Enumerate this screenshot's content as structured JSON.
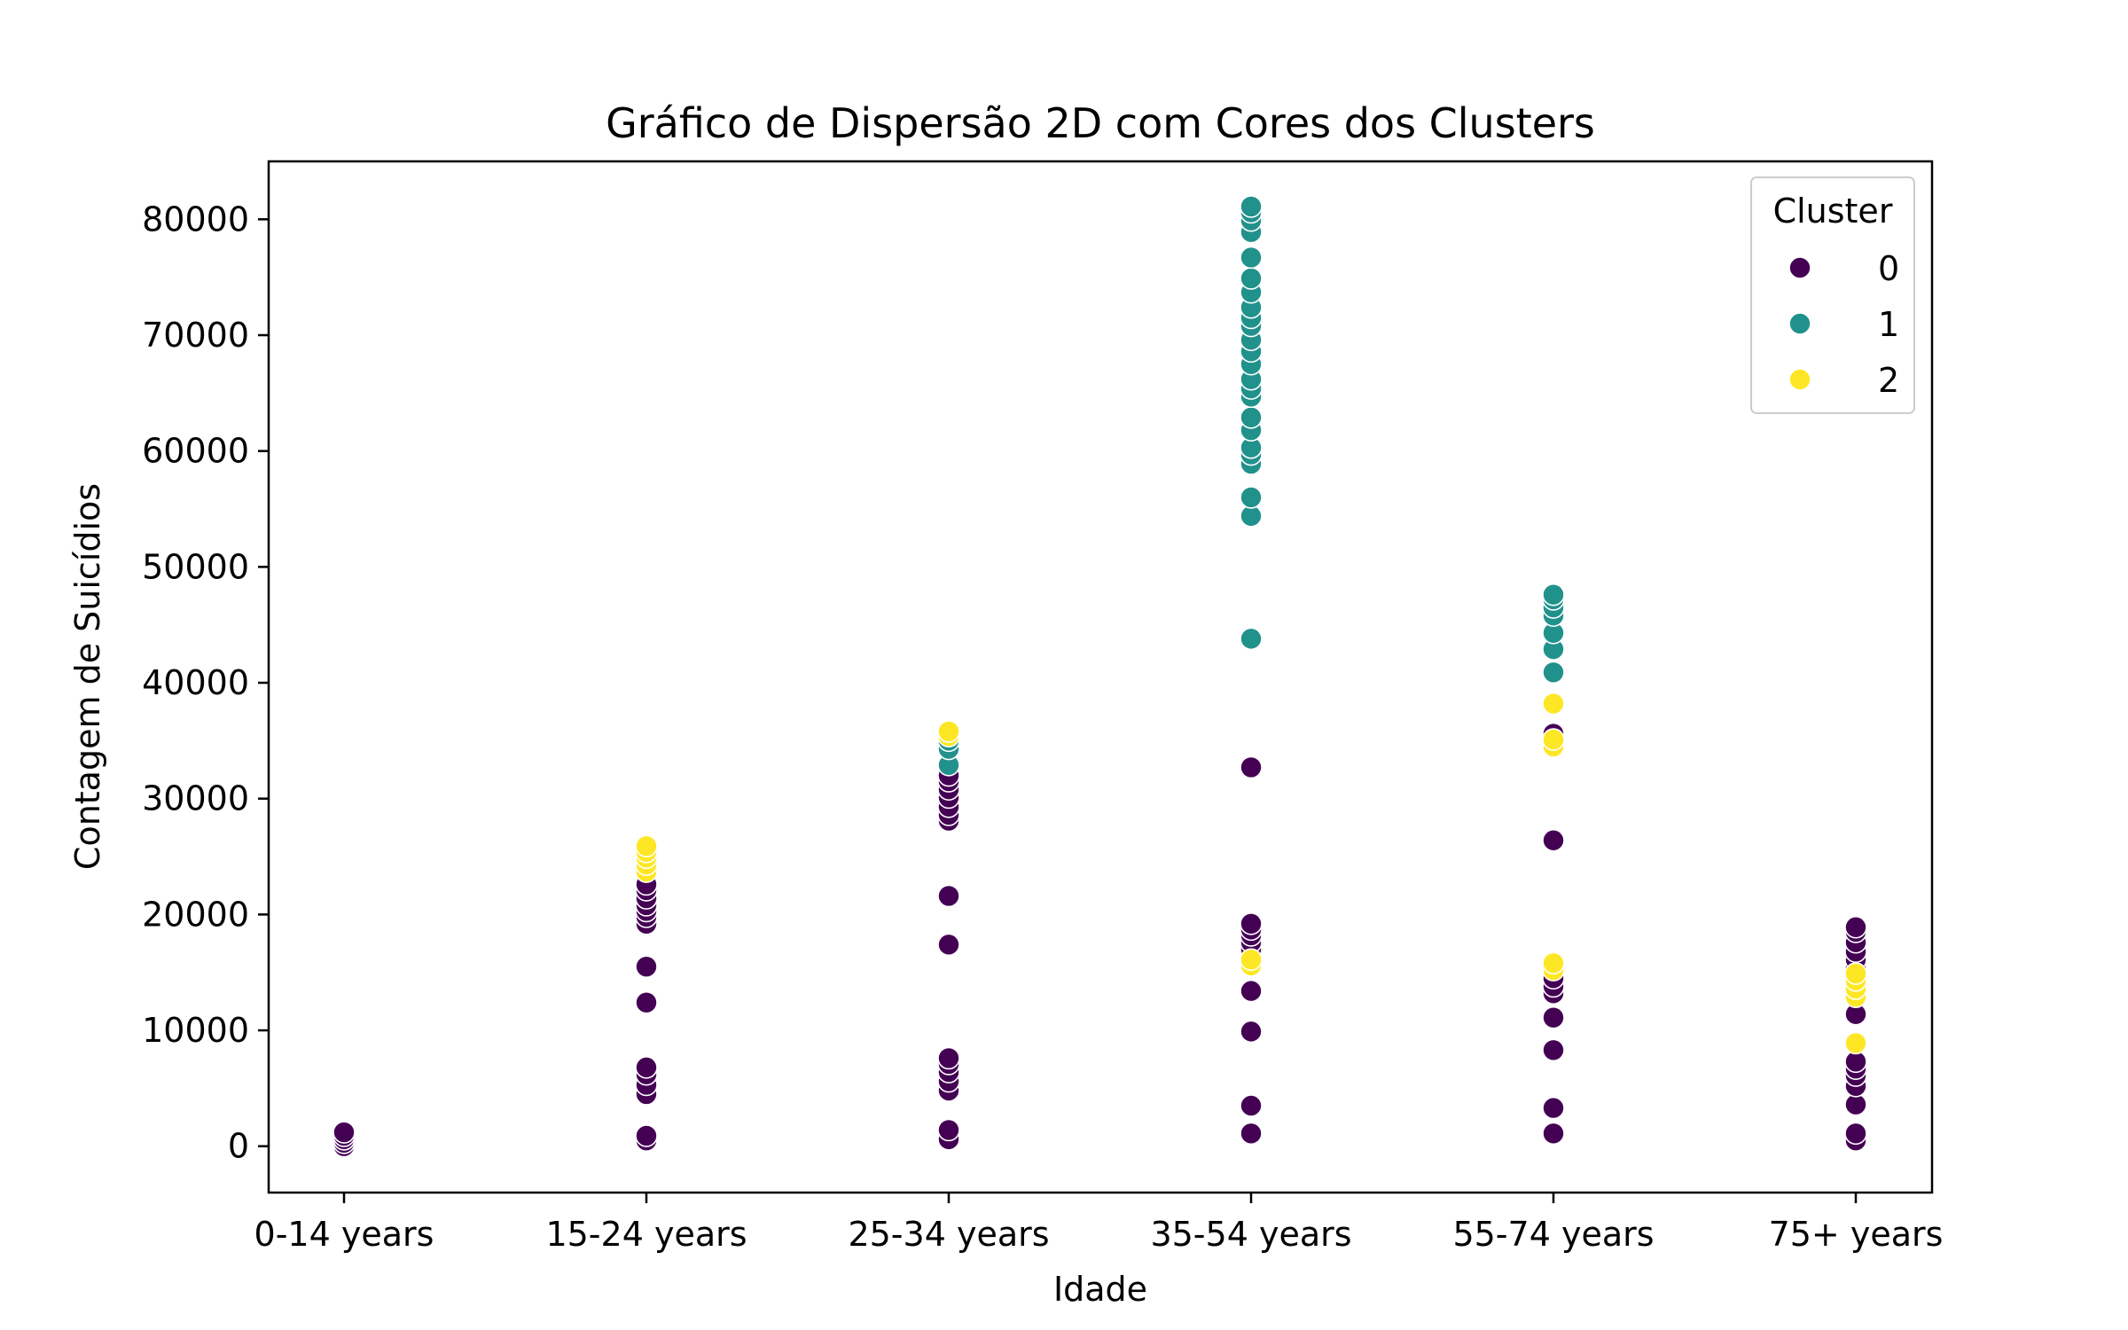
{
  "chart_data": {
    "type": "scatter",
    "title": "Gráfico de Dispersão 2D com Cores dos Clusters",
    "xlabel": "Idade",
    "ylabel": "Contagem de Suicídios",
    "categories": [
      "0-14 years",
      "15-24 years",
      "25-34 years",
      "35-54 years",
      "55-74 years",
      "75+ years"
    ],
    "ylim": [
      -4000,
      85000
    ],
    "yticks": [
      0,
      10000,
      20000,
      30000,
      40000,
      50000,
      60000,
      70000,
      80000
    ],
    "grid": false,
    "legend": {
      "title": "Cluster",
      "position": "top-right",
      "entries": [
        {
          "label": "0",
          "color": "#440154"
        },
        {
          "label": "1",
          "color": "#21918c"
        },
        {
          "label": "2",
          "color": "#fde725"
        }
      ]
    },
    "series": [
      {
        "name": "0",
        "color": "#440154",
        "points": [
          [
            "0-14 years",
            0
          ],
          [
            "0-14 years",
            300
          ],
          [
            "0-14 years",
            600
          ],
          [
            "0-14 years",
            900
          ],
          [
            "0-14 years",
            1200
          ],
          [
            "15-24 years",
            500
          ],
          [
            "15-24 years",
            900
          ],
          [
            "15-24 years",
            4500
          ],
          [
            "15-24 years",
            5300
          ],
          [
            "15-24 years",
            6200
          ],
          [
            "15-24 years",
            6800
          ],
          [
            "15-24 years",
            12400
          ],
          [
            "15-24 years",
            15500
          ],
          [
            "15-24 years",
            19200
          ],
          [
            "15-24 years",
            19800
          ],
          [
            "15-24 years",
            20300
          ],
          [
            "15-24 years",
            20800
          ],
          [
            "15-24 years",
            21400
          ],
          [
            "15-24 years",
            22100
          ],
          [
            "15-24 years",
            22600
          ],
          [
            "25-34 years",
            600
          ],
          [
            "25-34 years",
            1400
          ],
          [
            "25-34 years",
            4800
          ],
          [
            "25-34 years",
            5600
          ],
          [
            "25-34 years",
            6400
          ],
          [
            "25-34 years",
            7100
          ],
          [
            "25-34 years",
            7600
          ],
          [
            "25-34 years",
            17400
          ],
          [
            "25-34 years",
            21600
          ],
          [
            "25-34 years",
            28100
          ],
          [
            "25-34 years",
            28600
          ],
          [
            "25-34 years",
            29300
          ],
          [
            "25-34 years",
            30100
          ],
          [
            "25-34 years",
            30800
          ],
          [
            "25-34 years",
            31500
          ],
          [
            "25-34 years",
            32000
          ],
          [
            "35-54 years",
            1100
          ],
          [
            "35-54 years",
            3500
          ],
          [
            "35-54 years",
            9900
          ],
          [
            "35-54 years",
            13400
          ],
          [
            "35-54 years",
            16300
          ],
          [
            "35-54 years",
            17000
          ],
          [
            "35-54 years",
            17600
          ],
          [
            "35-54 years",
            18200
          ],
          [
            "35-54 years",
            18700
          ],
          [
            "35-54 years",
            19200
          ],
          [
            "35-54 years",
            32700
          ],
          [
            "55-74 years",
            1100
          ],
          [
            "55-74 years",
            3300
          ],
          [
            "55-74 years",
            8300
          ],
          [
            "55-74 years",
            11100
          ],
          [
            "55-74 years",
            13200
          ],
          [
            "55-74 years",
            13800
          ],
          [
            "55-74 years",
            14500
          ],
          [
            "55-74 years",
            26400
          ],
          [
            "55-74 years",
            35600
          ],
          [
            "75+ years",
            500
          ],
          [
            "75+ years",
            1100
          ],
          [
            "75+ years",
            3600
          ],
          [
            "75+ years",
            5200
          ],
          [
            "75+ years",
            6100
          ],
          [
            "75+ years",
            6700
          ],
          [
            "75+ years",
            7300
          ],
          [
            "75+ years",
            11400
          ],
          [
            "75+ years",
            15400
          ],
          [
            "75+ years",
            16100
          ],
          [
            "75+ years",
            16800
          ],
          [
            "75+ years",
            17600
          ],
          [
            "75+ years",
            18500
          ],
          [
            "75+ years",
            18900
          ]
        ]
      },
      {
        "name": "1",
        "color": "#21918c",
        "points": [
          [
            "25-34 years",
            32900
          ],
          [
            "25-34 years",
            34300
          ],
          [
            "25-34 years",
            35000
          ],
          [
            "35-54 years",
            43800
          ],
          [
            "35-54 years",
            54400
          ],
          [
            "35-54 years",
            56000
          ],
          [
            "35-54 years",
            58900
          ],
          [
            "35-54 years",
            59700
          ],
          [
            "35-54 years",
            60300
          ],
          [
            "35-54 years",
            61800
          ],
          [
            "35-54 years",
            62900
          ],
          [
            "35-54 years",
            64700
          ],
          [
            "35-54 years",
            65400
          ],
          [
            "35-54 years",
            66200
          ],
          [
            "35-54 years",
            67500
          ],
          [
            "35-54 years",
            68600
          ],
          [
            "35-54 years",
            69600
          ],
          [
            "35-54 years",
            70800
          ],
          [
            "35-54 years",
            71500
          ],
          [
            "35-54 years",
            72400
          ],
          [
            "35-54 years",
            73700
          ],
          [
            "35-54 years",
            74900
          ],
          [
            "35-54 years",
            76700
          ],
          [
            "35-54 years",
            78900
          ],
          [
            "35-54 years",
            79900
          ],
          [
            "35-54 years",
            80600
          ],
          [
            "35-54 years",
            81100
          ],
          [
            "55-74 years",
            40900
          ],
          [
            "55-74 years",
            42900
          ],
          [
            "55-74 years",
            44300
          ],
          [
            "55-74 years",
            45800
          ],
          [
            "55-74 years",
            46500
          ],
          [
            "55-74 years",
            47200
          ],
          [
            "55-74 years",
            47600
          ]
        ]
      },
      {
        "name": "2",
        "color": "#fde725",
        "points": [
          [
            "15-24 years",
            23700
          ],
          [
            "15-24 years",
            24300
          ],
          [
            "15-24 years",
            24900
          ],
          [
            "15-24 years",
            25400
          ],
          [
            "15-24 years",
            25900
          ],
          [
            "25-34 years",
            35400
          ],
          [
            "25-34 years",
            35800
          ],
          [
            "35-54 years",
            15600
          ],
          [
            "35-54 years",
            16100
          ],
          [
            "55-74 years",
            15200
          ],
          [
            "55-74 years",
            15800
          ],
          [
            "55-74 years",
            34500
          ],
          [
            "55-74 years",
            35100
          ],
          [
            "55-74 years",
            38200
          ],
          [
            "75+ years",
            8900
          ],
          [
            "75+ years",
            12900
          ],
          [
            "75+ years",
            13600
          ],
          [
            "75+ years",
            14300
          ],
          [
            "75+ years",
            14900
          ]
        ]
      }
    ]
  }
}
